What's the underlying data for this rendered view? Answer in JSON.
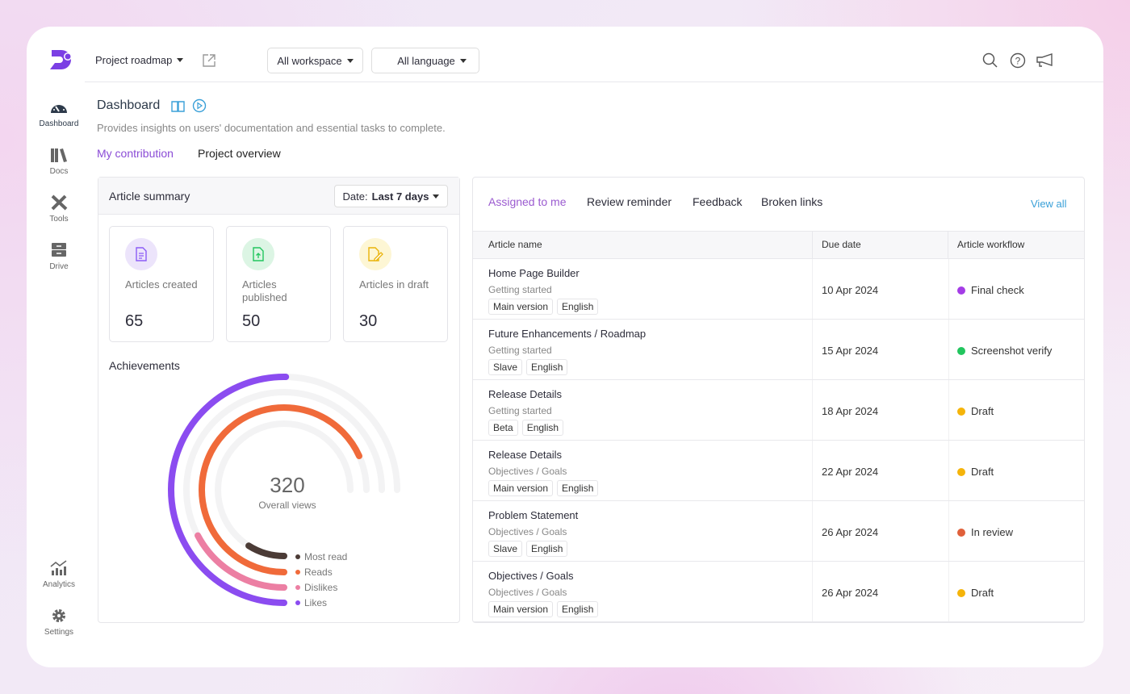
{
  "topbar": {
    "project": "Project roadmap",
    "workspace": "All workspace",
    "language": "All language"
  },
  "sidebar": {
    "items": [
      {
        "label": "Dashboard"
      },
      {
        "label": "Docs"
      },
      {
        "label": "Tools"
      },
      {
        "label": "Drive"
      },
      {
        "label": "Analytics"
      },
      {
        "label": "Settings"
      }
    ]
  },
  "header": {
    "title": "Dashboard",
    "subtitle": "Provides insights on users' documentation and essential tasks to complete.",
    "tabs": [
      "My contribution",
      "Project overview"
    ]
  },
  "summary": {
    "title": "Article summary",
    "date_label": "Date:",
    "date_value": "Last 7 days",
    "stats": [
      {
        "label": "Articles created",
        "value": "65",
        "color": "#8b5cf6"
      },
      {
        "label": "Articles published",
        "value": "50",
        "color": "#22c55e"
      },
      {
        "label": "Articles in draft",
        "value": "30",
        "color": "#eab308"
      }
    ]
  },
  "achievements": {
    "title": "Achievements"
  },
  "chart_data": {
    "type": "radial-bar",
    "center_value": "320",
    "center_label": "Overall views",
    "series": [
      {
        "name": "Most read",
        "fraction": 0.12,
        "color": "#4b3b36"
      },
      {
        "name": "Reads",
        "fraction": 0.91,
        "color": "#f06a3a"
      },
      {
        "name": "Dislikes",
        "fraction": 0.23,
        "color": "#ec7fa3"
      },
      {
        "name": "Likes",
        "fraction": 0.67,
        "color": "#8b4cf0"
      }
    ]
  },
  "tasks": {
    "tabs": [
      "Assigned to me",
      "Review reminder",
      "Feedback",
      "Broken links"
    ],
    "view_all": "View all",
    "columns": [
      "Article name",
      "Due date",
      "Article workflow"
    ],
    "rows": [
      {
        "title": "Home Page Builder",
        "category": "Getting started",
        "tags": [
          "Main version",
          "English"
        ],
        "due": "10 Apr 2024",
        "status": "Final check",
        "color": "#a43ce6"
      },
      {
        "title": "Future Enhancements / Roadmap",
        "category": "Getting started",
        "tags": [
          "Slave",
          "English"
        ],
        "due": "15 Apr 2024",
        "status": "Screenshot verify",
        "color": "#22c55e"
      },
      {
        "title": "Release Details",
        "category": "Getting started",
        "tags": [
          "Beta",
          "English"
        ],
        "due": "18 Apr 2024",
        "status": "Draft",
        "color": "#f5b40a"
      },
      {
        "title": "Release Details",
        "category": "Objectives / Goals",
        "tags": [
          "Main version",
          "English"
        ],
        "due": "22 Apr 2024",
        "status": "Draft",
        "color": "#f5b40a"
      },
      {
        "title": "Problem Statement",
        "category": "Objectives / Goals",
        "tags": [
          "Slave",
          "English"
        ],
        "due": "26 Apr 2024",
        "status": "In review",
        "color": "#e0603a"
      },
      {
        "title": "Objectives / Goals",
        "category": "Objectives / Goals",
        "tags": [
          "Main version",
          "English"
        ],
        "due": "26 Apr 2024",
        "status": "Draft",
        "color": "#f5b40a"
      }
    ]
  }
}
